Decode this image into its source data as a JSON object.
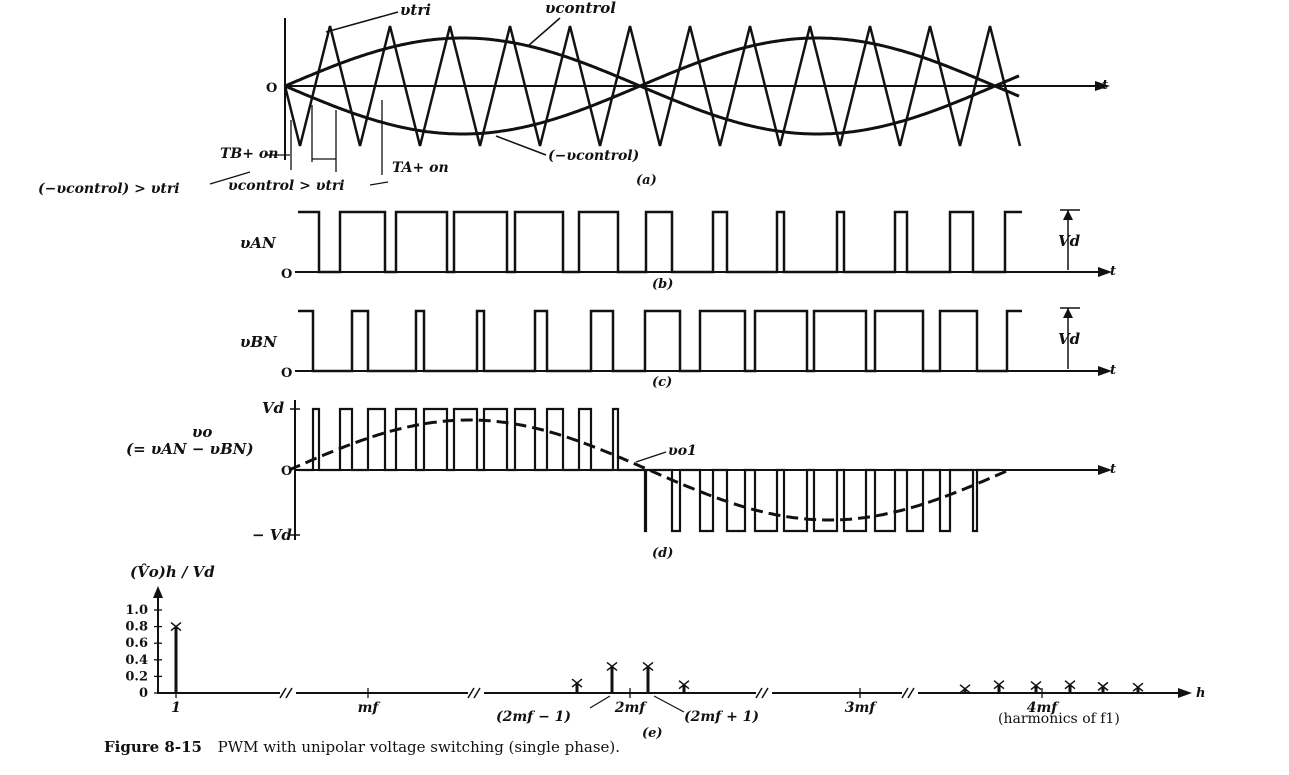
{
  "caption": {
    "number": "Figure 8-15",
    "text": "PWM with unipolar voltage switching (single phase)."
  },
  "panel_a": {
    "tag": "(a)",
    "origin": "O",
    "t": "t",
    "v_tri": "υtri",
    "v_control": "υcontrol",
    "neg_v_control": "(−υcontrol)",
    "tb_label": "TB+ on",
    "ta_label": "TA+ on",
    "cond1": "(−υcontrol) > υtri",
    "cond2": "υcontrol > υtri"
  },
  "panel_b": {
    "tag": "(b)",
    "ylabel": "υAN",
    "zero": "O",
    "t": "t",
    "amp": "Vd"
  },
  "panel_c": {
    "tag": "(c)",
    "ylabel": "υBN",
    "zero": "O",
    "t": "t",
    "amp": "Vd"
  },
  "panel_d": {
    "tag": "(d)",
    "ylabel1": "υo",
    "ylabel2": "(= υAN − υBN)",
    "top": "Vd",
    "zero": "O",
    "bottom": "− Vd",
    "t": "t",
    "fund": "υo1"
  },
  "panel_e": {
    "tag": "(e)",
    "ylabel": "(V̂o)h / Vd",
    "xlabel": "h",
    "note": "(harmonics of f1)",
    "ann_left": "(2mf − 1)",
    "ann_right": "(2mf + 1)",
    "chart_data": {
      "type": "bar",
      "ylim": [
        0,
        1.0
      ],
      "yticks": [
        "1.0",
        "0.8",
        "0.6",
        "0.4",
        "0.2",
        "0"
      ],
      "xticks": [
        "1",
        "mf",
        "2mf",
        "3mf",
        "4mf"
      ],
      "bars": [
        {
          "group": "1",
          "value": 0.8
        },
        {
          "group": "2mf",
          "value": 0.12
        },
        {
          "group": "2mf",
          "value": 0.32
        },
        {
          "group": "2mf",
          "value": 0.32
        },
        {
          "group": "2mf",
          "value": 0.1
        },
        {
          "group": "4mf",
          "value": 0.05
        },
        {
          "group": "4mf",
          "value": 0.1
        },
        {
          "group": "4mf",
          "value": 0.09
        },
        {
          "group": "4mf",
          "value": 0.1
        },
        {
          "group": "4mf",
          "value": 0.08
        },
        {
          "group": "4mf",
          "value": 0.07
        }
      ]
    }
  }
}
